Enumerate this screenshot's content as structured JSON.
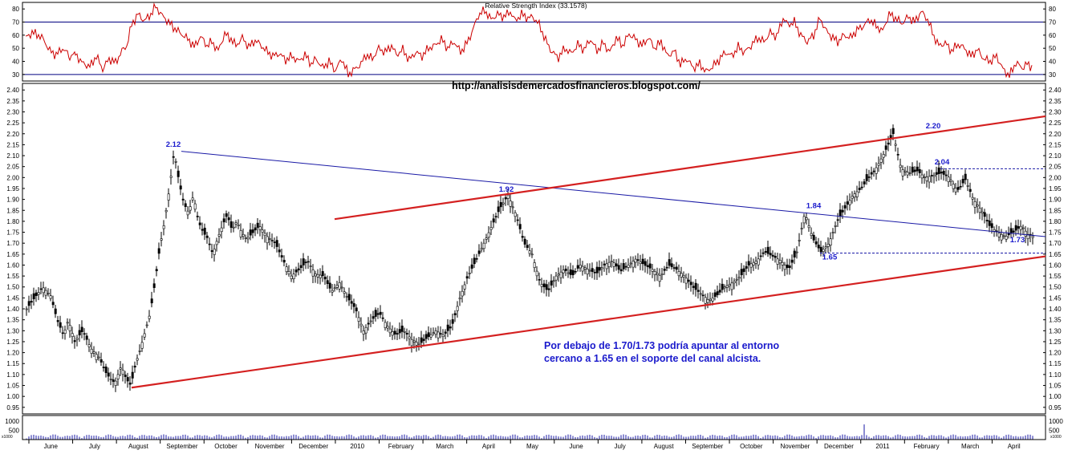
{
  "rsi_title": "Relative Strength Index (33.1578)",
  "watermark": "http://analisisdemercadosfinancieros.blogspot.com/",
  "annotation_lines": [
    "Por debajo de 1.70/1.73 podría apuntar al entorno",
    "cercano a 1.65 en  el soporte del canal alcista."
  ],
  "colors": {
    "background": "#ffffff",
    "frame": "#000000",
    "price": "#000000",
    "rsi_line": "#cc0000",
    "rsi_levels": "#000080",
    "channel": "#d42020",
    "trendline": "#1a1aa6",
    "annotation_text": "#1a1acc",
    "label_text": "#1a1acc"
  },
  "chart_data": [
    {
      "type": "line",
      "name": "rsi",
      "title": "Relative Strength Index (33.1578)",
      "ylim": [
        25,
        85
      ],
      "ticks": [
        30,
        40,
        50,
        60,
        70,
        80
      ],
      "levels": [
        30,
        70
      ],
      "x": [
        0,
        8,
        16,
        22,
        30,
        38,
        46,
        55,
        62,
        70,
        80,
        88,
        96,
        104,
        112,
        120,
        126,
        132,
        140,
        148,
        156,
        162,
        170,
        178,
        184,
        190,
        196,
        204,
        210,
        218,
        226,
        232,
        240,
        248,
        256,
        262,
        270,
        278,
        286,
        292,
        300,
        308,
        316,
        324,
        332,
        340,
        348,
        356,
        362,
        370,
        378,
        386,
        394,
        402,
        410,
        418,
        424,
        432,
        440,
        448,
        456,
        462,
        470,
        478,
        486,
        494,
        502,
        510,
        518,
        526,
        534,
        542,
        550,
        556,
        564,
        572,
        580,
        588,
        596,
        604,
        610,
        618,
        626,
        632,
        640,
        648,
        656,
        664,
        672,
        680,
        688,
        696,
        704,
        712,
        720,
        728,
        736,
        744,
        752,
        760,
        768,
        776,
        784,
        792,
        800,
        808,
        816,
        824,
        832,
        840,
        848,
        856,
        864,
        872,
        880,
        888,
        896,
        904,
        912,
        920,
        928,
        936,
        944,
        950,
        958,
        966,
        974,
        982,
        990,
        998,
        1006,
        1012,
        1020,
        1028,
        1036,
        1044,
        1052,
        1060,
        1068,
        1076,
        1084,
        1092,
        1100,
        1108,
        1116,
        1124,
        1132,
        1138,
        1146,
        1154,
        1162,
        1170,
        1178,
        1186,
        1194,
        1202,
        1210,
        1218,
        1226,
        1234,
        1242,
        1248,
        1256
      ],
      "y": [
        58,
        62,
        60,
        57,
        48,
        45,
        50,
        44,
        46,
        39,
        36,
        44,
        34,
        42,
        39,
        48,
        52,
        68,
        76,
        71,
        76,
        82,
        75,
        70,
        66,
        63,
        60,
        56,
        51,
        59,
        52,
        55,
        48,
        61,
        57,
        52,
        58,
        51,
        56,
        53,
        48,
        44,
        46,
        41,
        44,
        40,
        45,
        38,
        42,
        35,
        40,
        33,
        42,
        30,
        34,
        38,
        45,
        42,
        50,
        47,
        52,
        45,
        49,
        41,
        47,
        44,
        50,
        52,
        57,
        50,
        55,
        47,
        54,
        62,
        75,
        79,
        72,
        76,
        74,
        78,
        71,
        76,
        73,
        74,
        68,
        56,
        47,
        43,
        50,
        46,
        53,
        49,
        57,
        48,
        54,
        47,
        58,
        52,
        61,
        57,
        52,
        58,
        50,
        55,
        44,
        48,
        38,
        42,
        35,
        38,
        32,
        36,
        41,
        47,
        44,
        51,
        47,
        52,
        58,
        55,
        62,
        59,
        73,
        68,
        70,
        60,
        55,
        60,
        73,
        63,
        58,
        55,
        60,
        58,
        64,
        67,
        72,
        67,
        63,
        76,
        73,
        69,
        74,
        70,
        78,
        72,
        59,
        52,
        54,
        48,
        53,
        50,
        44,
        49,
        42,
        40,
        44,
        34,
        29,
        39,
        35,
        38,
        35
      ]
    },
    {
      "type": "candlestick",
      "name": "price",
      "ylim": [
        0.92,
        2.43
      ],
      "ticks": [
        0.95,
        1.0,
        1.05,
        1.1,
        1.15,
        1.2,
        1.25,
        1.3,
        1.35,
        1.4,
        1.45,
        1.5,
        1.55,
        1.6,
        1.65,
        1.7,
        1.75,
        1.8,
        1.85,
        1.9,
        1.95,
        2.0,
        2.05,
        2.1,
        2.15,
        2.2,
        2.25,
        2.3,
        2.35,
        2.4
      ],
      "x_labels": [
        "June",
        "July",
        "August",
        "September",
        "October",
        "November",
        "December",
        "2010",
        "February",
        "March",
        "April",
        "May",
        "June",
        "July",
        "August",
        "September",
        "October",
        "November",
        "December",
        "2011",
        "February",
        "March",
        "April"
      ],
      "close_path_x": [
        0,
        10,
        20,
        30,
        38,
        46,
        52,
        60,
        70,
        80,
        90,
        100,
        110,
        118,
        124,
        130,
        136,
        142,
        148,
        154,
        160,
        166,
        172,
        178,
        184,
        190,
        196,
        202,
        208,
        214,
        220,
        226,
        232,
        238,
        244,
        250,
        256,
        262,
        268,
        274,
        280,
        290,
        300,
        310,
        320,
        330,
        340,
        350,
        360,
        370,
        380,
        390,
        400,
        410,
        420,
        430,
        440,
        450,
        460,
        470,
        480,
        490,
        500,
        510,
        520,
        530,
        540,
        550,
        560,
        570,
        580,
        590,
        600,
        610,
        620,
        630,
        640,
        650,
        660,
        670,
        680,
        690,
        700,
        710,
        720,
        730,
        740,
        750,
        760,
        770,
        780,
        790,
        800,
        810,
        820,
        830,
        840,
        850,
        860,
        870,
        880,
        890,
        900,
        910,
        920,
        930,
        940,
        950,
        960,
        970,
        980,
        990,
        1000,
        1010,
        1020,
        1030,
        1040,
        1050,
        1060,
        1070,
        1080,
        1090,
        1100,
        1110,
        1120,
        1130,
        1140,
        1150,
        1160,
        1170,
        1180,
        1190,
        1200,
        1210,
        1220,
        1230,
        1240,
        1248,
        1256
      ],
      "close_path_y": [
        1.4,
        1.45,
        1.5,
        1.46,
        1.35,
        1.28,
        1.35,
        1.25,
        1.3,
        1.22,
        1.18,
        1.1,
        1.06,
        1.14,
        1.08,
        1.05,
        1.15,
        1.22,
        1.3,
        1.38,
        1.52,
        1.68,
        1.8,
        1.95,
        2.12,
        1.98,
        1.88,
        1.84,
        1.92,
        1.8,
        1.75,
        1.72,
        1.65,
        1.72,
        1.78,
        1.83,
        1.76,
        1.8,
        1.75,
        1.72,
        1.74,
        1.78,
        1.73,
        1.7,
        1.62,
        1.55,
        1.58,
        1.62,
        1.56,
        1.55,
        1.48,
        1.52,
        1.45,
        1.4,
        1.3,
        1.35,
        1.38,
        1.32,
        1.28,
        1.3,
        1.26,
        1.24,
        1.27,
        1.3,
        1.28,
        1.32,
        1.45,
        1.55,
        1.62,
        1.7,
        1.78,
        1.86,
        1.92,
        1.83,
        1.7,
        1.65,
        1.52,
        1.48,
        1.55,
        1.58,
        1.55,
        1.6,
        1.58,
        1.56,
        1.6,
        1.62,
        1.57,
        1.6,
        1.63,
        1.6,
        1.58,
        1.55,
        1.6,
        1.58,
        1.55,
        1.5,
        1.47,
        1.44,
        1.46,
        1.5,
        1.52,
        1.55,
        1.6,
        1.62,
        1.66,
        1.64,
        1.62,
        1.58,
        1.66,
        1.84,
        1.72,
        1.66,
        1.7,
        1.8,
        1.86,
        1.92,
        1.95,
        2.0,
        2.05,
        2.12,
        2.2,
        2.04,
        2.02,
        2.03,
        2.0,
        2.01,
        2.02,
        2.0,
        1.94,
        1.99,
        1.9,
        1.85,
        1.78,
        1.75,
        1.73,
        1.75,
        1.78,
        1.74,
        1.73
      ],
      "labels": [
        {
          "text": "2.12",
          "x": 184,
          "y": 2.14
        },
        {
          "text": "1.92",
          "x": 599,
          "y": 1.935
        },
        {
          "text": "1.84",
          "x": 982,
          "y": 1.86
        },
        {
          "text": "2.20",
          "x": 1131,
          "y": 2.225
        },
        {
          "text": "2.04",
          "x": 1142,
          "y": 2.06
        },
        {
          "text": "1.65",
          "x": 1002,
          "y": 1.625
        },
        {
          "text": "1.73",
          "x": 1236,
          "y": 1.705
        }
      ],
      "channel_upper": [
        [
          385,
          1.81
        ],
        [
          1275,
          2.28
        ]
      ],
      "channel_lower": [
        [
          132,
          1.04
        ],
        [
          1275,
          1.64
        ]
      ],
      "trendline": [
        [
          194,
          2.12
        ],
        [
          1275,
          1.73
        ]
      ],
      "dashed_levels": [
        {
          "value": 2.04,
          "x0": 1140,
          "x1": 1275
        },
        {
          "value": 1.655,
          "x0": 990,
          "x1": 1275
        }
      ]
    },
    {
      "type": "bar",
      "name": "volume",
      "ylim": [
        0,
        1300
      ],
      "ticks": [
        500,
        1000
      ],
      "scale_note": "x1000"
    }
  ]
}
